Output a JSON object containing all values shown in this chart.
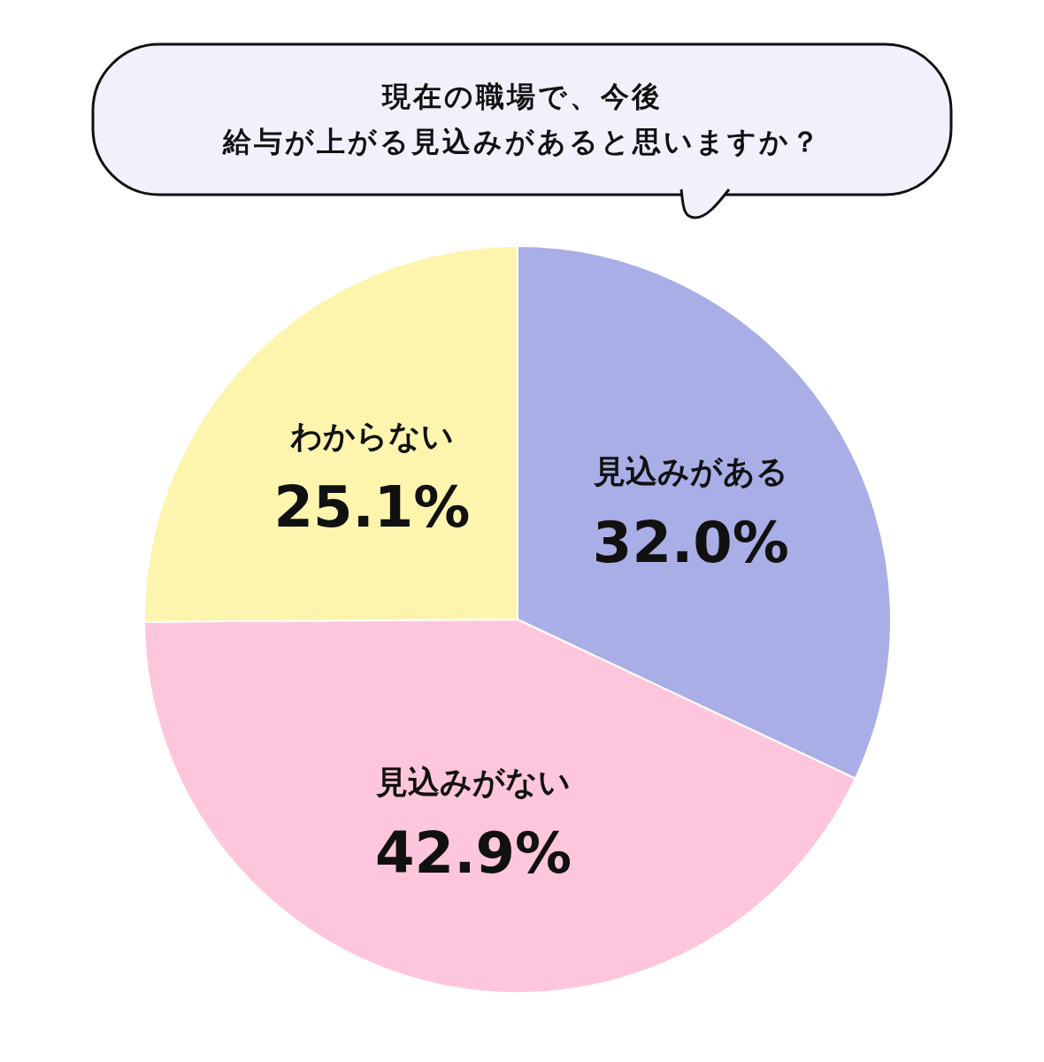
{
  "chart_data": {
    "type": "pie",
    "title": "現在の職場で、今後",
    "subtitle": "給与が上がる見込みがあると思いますか？",
    "categories": [
      "見込みがある",
      "見込みがない",
      "わからない"
    ],
    "values": [
      32.0,
      42.9,
      25.1
    ],
    "value_labels": [
      "32.0%",
      "42.9%",
      "25.1%"
    ],
    "colors": [
      "#aaaee6",
      "#fec6dc",
      "#fdf5ae"
    ]
  }
}
